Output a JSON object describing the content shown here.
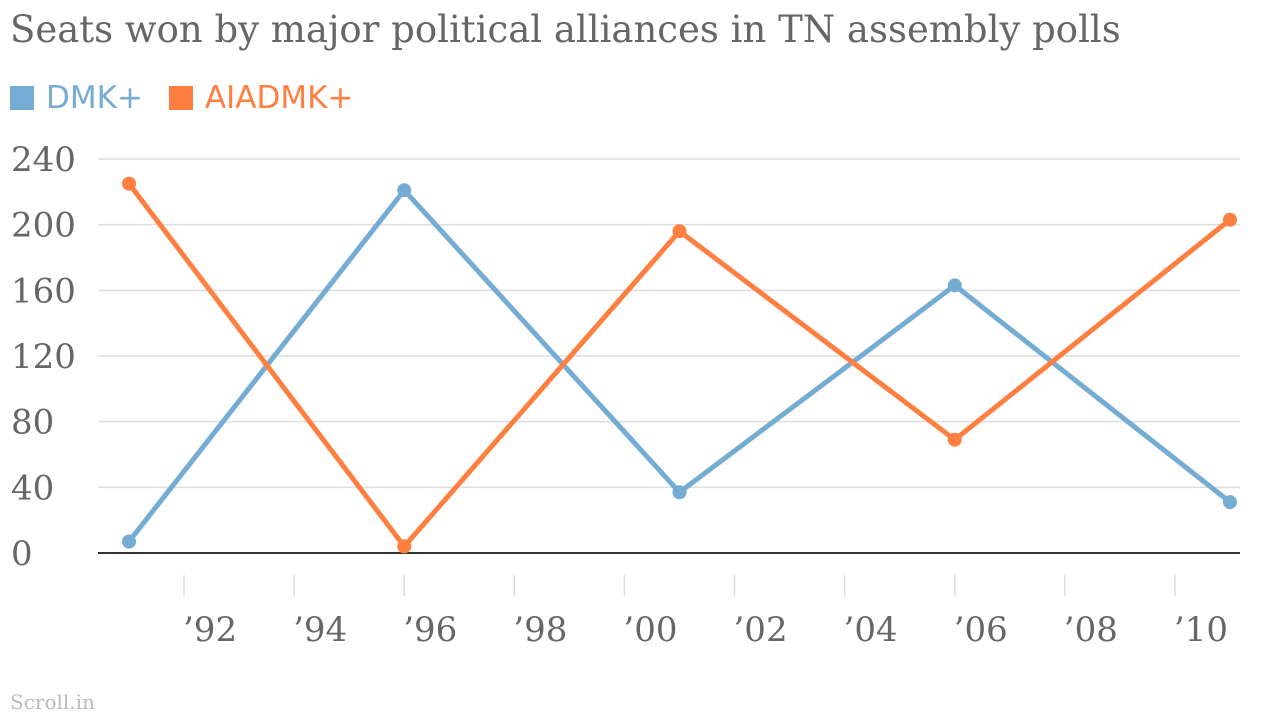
{
  "chart_data": {
    "type": "line",
    "title": "Seats won by major political alliances in TN assembly polls",
    "x": [
      1991,
      1996,
      2001,
      2006,
      2011
    ],
    "series": [
      {
        "name": "DMK+",
        "color": "#74acd3",
        "values": [
          7,
          221,
          37,
          163,
          31
        ]
      },
      {
        "name": "AIADMK+",
        "color": "#ff7f41",
        "values": [
          225,
          4,
          196,
          69,
          203
        ]
      }
    ],
    "xticks": [
      {
        "value": 1992,
        "label": "’92"
      },
      {
        "value": 1994,
        "label": "’94"
      },
      {
        "value": 1996,
        "label": "’96"
      },
      {
        "value": 1998,
        "label": "’98"
      },
      {
        "value": 2000,
        "label": "’00"
      },
      {
        "value": 2002,
        "label": "’02"
      },
      {
        "value": 2004,
        "label": "’04"
      },
      {
        "value": 2006,
        "label": "’06"
      },
      {
        "value": 2008,
        "label": "’08"
      },
      {
        "value": 2010,
        "label": "’10"
      }
    ],
    "yticks": [
      0,
      40,
      80,
      120,
      160,
      200,
      240
    ],
    "ylim": [
      0,
      240
    ],
    "xlim": [
      1991,
      2011
    ],
    "grid": true,
    "legend_position": "top-left"
  },
  "legend": {
    "items": [
      {
        "label": "DMK+",
        "color": "#74acd3"
      },
      {
        "label": "AIADMK+",
        "color": "#ff7f41"
      }
    ]
  },
  "footer": {
    "source": "Scroll.in"
  }
}
